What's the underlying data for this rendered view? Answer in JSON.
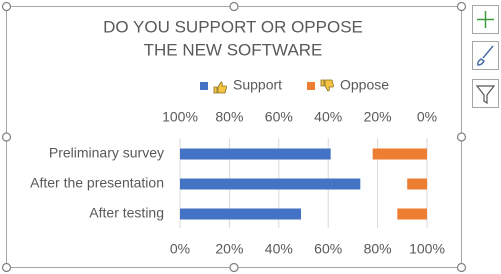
{
  "chart_data": {
    "type": "bar",
    "orientation": "horizontal",
    "title": [
      "DO YOU SUPPORT OR OPPOSE",
      "THE NEW SOFTWARE"
    ],
    "categories": [
      "Preliminary survey",
      "After the presentation",
      "After testing"
    ],
    "series": [
      {
        "name": "Support",
        "color": "#4472c4",
        "values": [
          61,
          73,
          49
        ]
      },
      {
        "name": "Oppose",
        "color": "#ed7d31",
        "values": [
          22,
          8,
          12
        ],
        "axis": "x2"
      }
    ],
    "xlim": [
      0,
      100
    ],
    "xticks": [
      {
        "value": 0,
        "label": "0%"
      },
      {
        "value": 20,
        "label": "20%"
      },
      {
        "value": 40,
        "label": "40%"
      },
      {
        "value": 60,
        "label": "60%"
      },
      {
        "value": 80,
        "label": "80%"
      },
      {
        "value": 100,
        "label": "100%"
      }
    ],
    "x2lim": [
      100,
      0
    ],
    "x2ticks": [
      {
        "value": 100,
        "label": "100%"
      },
      {
        "value": 80,
        "label": "80%"
      },
      {
        "value": 60,
        "label": "60%"
      },
      {
        "value": 40,
        "label": "40%"
      },
      {
        "value": 20,
        "label": "20%"
      },
      {
        "value": 0,
        "label": "0%"
      }
    ],
    "grid": true
  }
}
